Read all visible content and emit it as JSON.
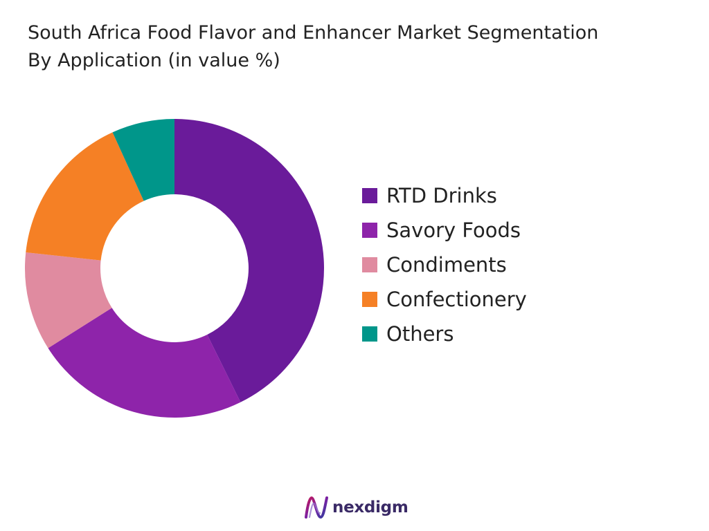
{
  "chart_data": {
    "type": "pie",
    "title_lines": [
      "South Africa Food Flavor and Enhancer Market Segmentation",
      "By Application (in value %)"
    ],
    "donut": true,
    "legend_position": "right",
    "categories": [
      "RTD Drinks",
      "Savory Foods",
      "Condiments",
      "Confectionery",
      "Others"
    ],
    "values": [
      44,
      24,
      11,
      17,
      7
    ],
    "colors": [
      "#6a1b9a",
      "#8e24aa",
      "#e08ba0",
      "#f58025",
      "#00968a"
    ]
  },
  "branding": {
    "logo_text": "nexdigm",
    "logo_icon": "nexdigm-logo-icon"
  }
}
